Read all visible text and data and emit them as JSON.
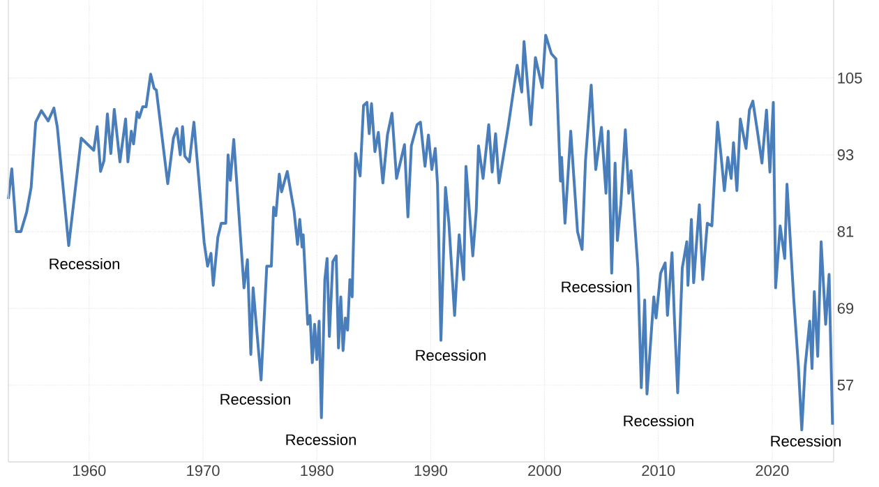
{
  "chart_data": {
    "type": "line",
    "x": [
      1952.9,
      1953.2,
      1953.6,
      1954.0,
      1954.5,
      1954.9,
      1955.3,
      1955.8,
      1956.4,
      1956.9,
      1957.2,
      1958.2,
      1959.3,
      1960.4,
      1960.7,
      1961.0,
      1961.3,
      1961.6,
      1961.9,
      1962.2,
      1962.7,
      1963.2,
      1963.4,
      1963.7,
      1963.9,
      1964.2,
      1964.4,
      1964.7,
      1965.0,
      1965.4,
      1965.7,
      1965.9,
      1966.9,
      1967.4,
      1967.7,
      1968.0,
      1968.2,
      1968.4,
      1968.8,
      1969.2,
      1970.1,
      1970.4,
      1970.7,
      1970.9,
      1971.3,
      1971.6,
      1972.0,
      1972.2,
      1972.4,
      1972.7,
      1973.6,
      1973.9,
      1974.2,
      1974.4,
      1975.1,
      1975.6,
      1976.0,
      1976.2,
      1976.4,
      1976.7,
      1976.9,
      1977.4,
      1978.0,
      1978.3,
      1978.5,
      1978.7,
      1978.8,
      1979.2,
      1979.4,
      1979.6,
      1979.8,
      1980.0,
      1980.2,
      1980.4,
      1980.7,
      1980.9,
      1981.1,
      1981.4,
      1981.7,
      1981.9,
      1982.1,
      1982.3,
      1982.5,
      1982.7,
      1982.9,
      1983.1,
      1983.4,
      1983.8,
      1984.1,
      1984.4,
      1984.6,
      1984.8,
      1985.1,
      1985.4,
      1985.8,
      1986.2,
      1986.6,
      1987.0,
      1987.7,
      1988.0,
      1988.3,
      1988.8,
      1989.1,
      1989.5,
      1989.8,
      1990.1,
      1990.4,
      1990.6,
      1990.9,
      1991.3,
      1991.6,
      1992.1,
      1992.5,
      1992.9,
      1993.1,
      1993.7,
      1994.0,
      1994.2,
      1994.6,
      1995.1,
      1995.4,
      1995.7,
      1996.0,
      1996.8,
      1997.6,
      1998.0,
      1998.2,
      1998.8,
      1999.2,
      1999.8,
      2000.1,
      2000.6,
      2001.0,
      2001.4,
      2001.5,
      2001.8,
      2002.3,
      2002.9,
      2003.3,
      2003.6,
      2004.1,
      2004.5,
      2005.0,
      2005.4,
      2005.6,
      2005.9,
      2006.2,
      2006.4,
      2006.7,
      2007.1,
      2007.4,
      2007.6,
      2008.2,
      2008.5,
      2008.8,
      2009.0,
      2009.6,
      2009.8,
      2010.2,
      2010.6,
      2010.8,
      2011.2,
      2011.4,
      2011.7,
      2012.1,
      2012.5,
      2012.6,
      2012.9,
      2013.1,
      2013.6,
      2013.9,
      2014.3,
      2014.7,
      2015.2,
      2015.5,
      2015.8,
      2016.1,
      2016.4,
      2016.6,
      2016.9,
      2017.2,
      2017.7,
      2018.0,
      2018.3,
      2018.7,
      2019.1,
      2019.5,
      2019.8,
      2020.1,
      2020.3,
      2020.7,
      2021.1,
      2021.3,
      2021.9,
      2022.3,
      2022.6,
      2022.9,
      2023.3,
      2023.5,
      2023.7,
      2024.0,
      2024.3,
      2024.7,
      2025.0,
      2025.3
    ],
    "values": [
      86.1,
      90.8,
      81.0,
      81.0,
      84.0,
      87.9,
      98.1,
      99.9,
      98.3,
      100.3,
      97.3,
      78.8,
      95.6,
      93.7,
      97.4,
      90.4,
      92.1,
      99.4,
      93.2,
      100.1,
      91.9,
      98.6,
      91.9,
      96.7,
      94.7,
      99.7,
      98.8,
      100.5,
      100.5,
      105.6,
      103.4,
      103.1,
      88.5,
      95.6,
      97.1,
      93.0,
      97.4,
      92.8,
      91.9,
      98.1,
      79.3,
      75.6,
      77.6,
      72.6,
      80.1,
      82.3,
      82.3,
      93.0,
      89.0,
      95.4,
      72.2,
      76.6,
      61.8,
      72.2,
      57.8,
      75.6,
      75.6,
      84.8,
      83.5,
      90.0,
      87.2,
      90.4,
      84.2,
      79.0,
      82.9,
      78.6,
      80.5,
      66.5,
      67.9,
      60.5,
      66.5,
      61.0,
      67.0,
      51.9,
      73.5,
      76.8,
      64.6,
      76.3,
      77.2,
      62.8,
      70.8,
      62.4,
      67.5,
      65.6,
      73.5,
      70.8,
      93.2,
      89.7,
      100.7,
      101.2,
      96.3,
      101.0,
      93.5,
      96.5,
      88.6,
      96.1,
      99.5,
      89.3,
      94.6,
      83.3,
      94.4,
      97.7,
      98.1,
      91.2,
      96.1,
      90.7,
      94.0,
      88.4,
      64.0,
      87.9,
      82.3,
      67.9,
      80.5,
      73.5,
      91.2,
      77.2,
      84.2,
      94.4,
      89.3,
      97.7,
      90.3,
      96.3,
      88.6,
      97.3,
      107.0,
      102.8,
      110.7,
      97.7,
      108.2,
      103.5,
      111.7,
      108.8,
      108.0,
      88.9,
      92.6,
      82.3,
      96.7,
      81.0,
      78.2,
      92.1,
      103.9,
      90.7,
      97.3,
      87.0,
      96.7,
      74.5,
      91.7,
      79.6,
      85.2,
      96.9,
      87.0,
      90.5,
      75.3,
      56.6,
      70.3,
      55.6,
      70.8,
      67.5,
      74.5,
      76.1,
      67.9,
      77.7,
      67.9,
      55.8,
      75.3,
      79.4,
      72.6,
      82.9,
      73.0,
      85.2,
      73.5,
      82.3,
      81.9,
      98.1,
      93.0,
      87.4,
      92.6,
      89.3,
      94.9,
      87.4,
      98.6,
      94.0,
      100.0,
      101.4,
      96.7,
      91.7,
      100.0,
      90.3,
      101.2,
      72.2,
      81.9,
      76.8,
      88.4,
      70.3,
      60.0,
      50.0,
      60.0,
      67.0,
      59.6,
      71.6,
      61.5,
      79.4,
      66.5,
      74.3,
      50.8
    ],
    "color": "#4a7ebb",
    "xlim": [
      1952.9,
      2025.4
    ],
    "ylim": [
      45,
      117.2
    ],
    "xticks": [
      1960,
      1970,
      1980,
      1990,
      2000,
      2010,
      2020
    ],
    "yticks": [
      57,
      69,
      81,
      93,
      105
    ],
    "grid": true,
    "marker": "none",
    "line_style": "solid",
    "annotations": [
      "Recession",
      "Recession",
      "Recession",
      "Recession",
      "Recession",
      "Recession",
      "Recession"
    ]
  }
}
